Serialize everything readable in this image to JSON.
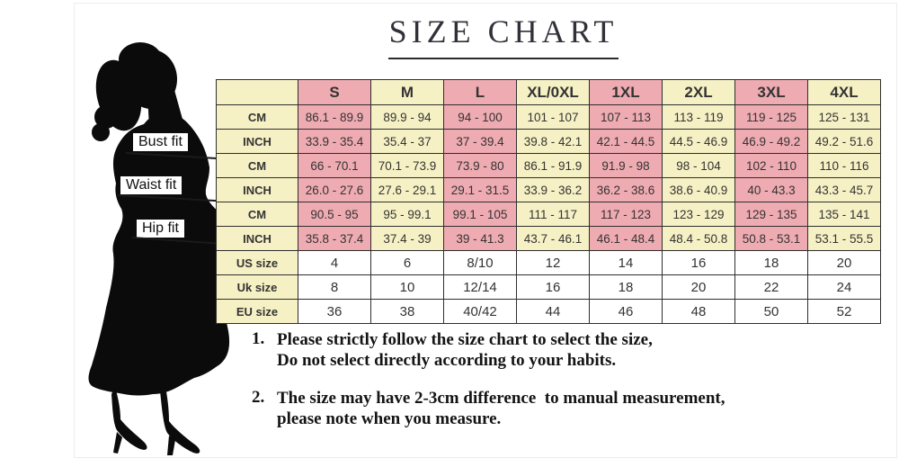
{
  "title": {
    "text": "SIZE CHART"
  },
  "figure": {
    "alt": "woman-silhouette"
  },
  "table": {
    "columns": [
      "S",
      "M",
      "L",
      "XL/0XL",
      "1XL",
      "2XL",
      "3XL",
      "4XL"
    ],
    "sections": [
      {
        "fit_label": "Bust fit",
        "rows": [
          {
            "unit": "CM",
            "values": [
              "86.1 - 89.9",
              "89.9 - 94",
              "94 - 100",
              "101 - 107",
              "107 - 113",
              "113 - 119",
              "119 - 125",
              "125 - 131"
            ]
          },
          {
            "unit": "INCH",
            "values": [
              "33.9 - 35.4",
              "35.4 - 37",
              "37 - 39.4",
              "39.8 - 42.1",
              "42.1 - 44.5",
              "44.5 - 46.9",
              "46.9 - 49.2",
              "49.2 - 51.6"
            ]
          }
        ]
      },
      {
        "fit_label": "Waist fit",
        "rows": [
          {
            "unit": "CM",
            "values": [
              "66 - 70.1",
              "70.1 - 73.9",
              "73.9 - 80",
              "86.1 - 91.9",
              "91.9 - 98",
              "98 - 104",
              "102 - 110",
              "110 - 116"
            ]
          },
          {
            "unit": "INCH",
            "values": [
              "26.0 - 27.6",
              "27.6 - 29.1",
              "29.1 - 31.5",
              "33.9 - 36.2",
              "36.2 - 38.6",
              "38.6 - 40.9",
              "40 - 43.3",
              "43.3 - 45.7"
            ]
          }
        ]
      },
      {
        "fit_label": "Hip fit",
        "rows": [
          {
            "unit": "CM",
            "values": [
              "90.5 - 95",
              "95 - 99.1",
              "99.1 - 105",
              "111 - 117",
              "117 - 123",
              "123 - 129",
              "129 - 135",
              "135 - 141"
            ]
          },
          {
            "unit": "INCH",
            "values": [
              "35.8 - 37.4",
              "37.4 - 39",
              "39 - 41.3",
              "43.7 - 46.1",
              "46.1 - 48.4",
              "48.4 - 50.8",
              "50.8 - 53.1",
              "53.1 - 55.5"
            ]
          }
        ]
      }
    ],
    "size_rows": [
      {
        "label": "US size",
        "values": [
          "4",
          "6",
          "8/10",
          "12",
          "14",
          "16",
          "18",
          "20"
        ]
      },
      {
        "label": "Uk size",
        "values": [
          "8",
          "10",
          "12/14",
          "16",
          "18",
          "20",
          "22",
          "24"
        ]
      },
      {
        "label": "EU size",
        "values": [
          "36",
          "38",
          "40/42",
          "44",
          "46",
          "48",
          "50",
          "52"
        ]
      }
    ]
  },
  "notes": [
    {
      "number": "1.",
      "line1": "Please strictly follow the size chart to select the size,",
      "line2": "Do not select directly according to your habits."
    },
    {
      "number": "2.",
      "line1": "The size may have 2-3cm difference  to manual measurement,",
      "line2": "please note when you measure."
    }
  ],
  "colors": {
    "pink": "#efabb2",
    "cream": "#f6f1c5",
    "table_line": "#2e2e2e",
    "text": "#333333"
  }
}
